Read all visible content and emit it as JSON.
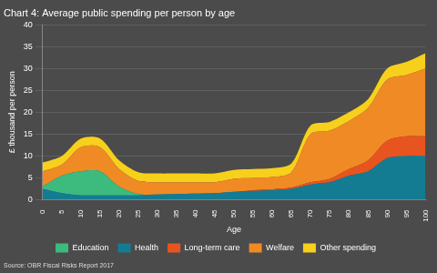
{
  "chart_data": {
    "type": "area",
    "title": "Chart 4: Average public spending per person by age",
    "source": "Source: OBR Fiscal Risks Report 2017",
    "x_label": "Age",
    "y_label": "£ thousand per person",
    "categories": [
      0,
      5,
      10,
      15,
      20,
      25,
      30,
      35,
      40,
      45,
      50,
      55,
      60,
      65,
      70,
      75,
      80,
      85,
      90,
      95,
      100
    ],
    "series": [
      {
        "name": "Education",
        "color": "#3dba7e",
        "values": [
          0.5,
          4,
          5.5,
          5.5,
          2,
          0.3,
          0,
          0,
          0,
          0,
          0,
          0,
          0,
          0,
          0,
          0,
          0,
          0,
          0,
          0,
          0
        ]
      },
      {
        "name": "Health",
        "color": "#137c93",
        "values": [
          2.5,
          1.5,
          1,
          1,
          1,
          1,
          1.2,
          1.3,
          1.4,
          1.5,
          1.8,
          2,
          2.2,
          2.5,
          3.5,
          4,
          5.5,
          6.5,
          9.5,
          10,
          10
        ]
      },
      {
        "name": "Long-term care",
        "color": "#e8541f",
        "values": [
          0,
          0,
          0,
          0,
          0,
          0,
          0,
          0,
          0,
          0,
          0,
          0.2,
          0.2,
          0.3,
          0.5,
          0.8,
          1.5,
          2.5,
          4,
          4.5,
          4.5
        ]
      },
      {
        "name": "Welfare",
        "color": "#f08a24",
        "values": [
          3.5,
          2.5,
          5.5,
          5.5,
          4,
          3,
          2.8,
          2.7,
          2.6,
          2.5,
          3,
          2.8,
          2.8,
          3.5,
          11,
          11,
          11,
          12,
          14,
          14,
          15.5
        ]
      },
      {
        "name": "Other spending",
        "color": "#f7d01c",
        "values": [
          2,
          2,
          2,
          2,
          2,
          2,
          2,
          2,
          2,
          2,
          2,
          2,
          2,
          2,
          2,
          2,
          2,
          2,
          2.5,
          3,
          3.5
        ]
      }
    ],
    "ylim": [
      0,
      40
    ],
    "yticks": [
      0,
      5,
      10,
      15,
      20,
      25,
      30,
      35,
      40
    ],
    "stacked": true,
    "grid": true,
    "legend": "bottom"
  }
}
